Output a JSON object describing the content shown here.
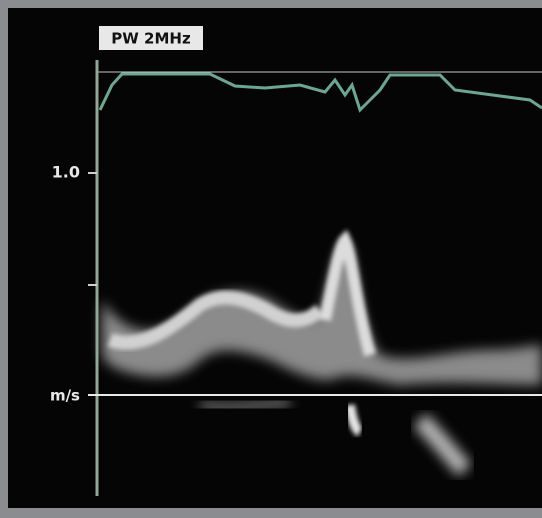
{
  "mode_label": "PW 2MHz",
  "scale": {
    "tick_label": "1.0",
    "unit_label": "m/s"
  }
}
